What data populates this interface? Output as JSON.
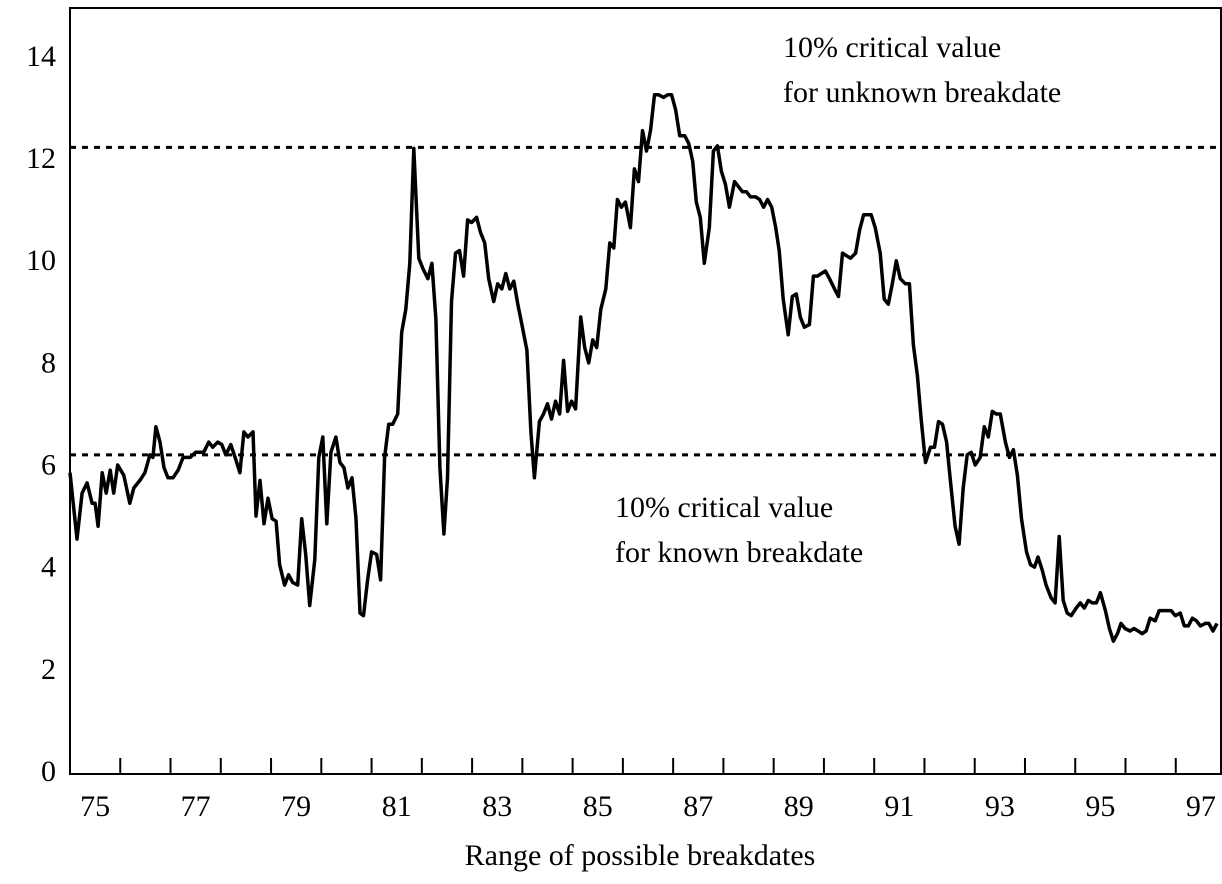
{
  "chart_data": {
    "type": "line",
    "xlabel": "Range of possible breakdates",
    "color": "#000000",
    "xlim": [
      75,
      97.9
    ],
    "ylim": [
      0,
      15
    ],
    "yticks": [
      0,
      2,
      4,
      6,
      8,
      10,
      12,
      14
    ],
    "xticks": [
      {
        "value": 75.5,
        "label": "75"
      },
      {
        "value": 77.5,
        "label": "77"
      },
      {
        "value": 79.5,
        "label": "79"
      },
      {
        "value": 81.5,
        "label": "81"
      },
      {
        "value": 83.5,
        "label": "83"
      },
      {
        "value": 85.5,
        "label": "85"
      },
      {
        "value": 87.5,
        "label": "87"
      },
      {
        "value": 89.5,
        "label": "89"
      },
      {
        "value": 91.5,
        "label": "91"
      },
      {
        "value": 93.5,
        "label": "93"
      },
      {
        "value": 95.5,
        "label": "95"
      },
      {
        "value": 97.5,
        "label": "97"
      }
    ],
    "xtick_marks": [
      76,
      77,
      78,
      79,
      80,
      81,
      82,
      83,
      84,
      85,
      86,
      87,
      88,
      89,
      90,
      91,
      92,
      93,
      94,
      95,
      96,
      97
    ],
    "reference_lines": [
      {
        "value": 12.27,
        "annotation": [
          "10% critical value",
          "for unknown breakdate"
        ]
      },
      {
        "value": 6.25,
        "annotation": [
          "10% critical value",
          "for known breakdate"
        ]
      }
    ],
    "x": [
      75.0,
      75.14,
      75.24,
      75.34,
      75.44,
      75.5,
      75.56,
      75.64,
      75.72,
      75.8,
      75.87,
      75.95,
      76.07,
      76.19,
      76.27,
      76.39,
      76.49,
      76.59,
      76.65,
      76.71,
      76.79,
      76.87,
      76.95,
      77.05,
      77.15,
      77.25,
      77.39,
      77.5,
      77.66,
      77.76,
      77.84,
      77.94,
      78.02,
      78.1,
      78.2,
      78.3,
      78.38,
      78.46,
      78.54,
      78.64,
      78.7,
      78.78,
      78.86,
      78.94,
      79.02,
      79.1,
      79.17,
      79.27,
      79.35,
      79.43,
      79.53,
      79.61,
      79.69,
      79.77,
      79.87,
      79.95,
      80.03,
      80.11,
      80.19,
      80.29,
      80.37,
      80.45,
      80.53,
      80.61,
      80.69,
      80.77,
      80.84,
      80.92,
      81.0,
      81.1,
      81.18,
      81.26,
      81.34,
      81.42,
      81.52,
      81.6,
      81.68,
      81.76,
      81.84,
      81.94,
      82.02,
      82.12,
      82.2,
      82.28,
      82.36,
      82.44,
      82.51,
      82.59,
      82.67,
      82.75,
      82.83,
      82.91,
      82.99,
      83.09,
      83.17,
      83.25,
      83.33,
      83.43,
      83.51,
      83.59,
      83.67,
      83.75,
      83.83,
      83.91,
      83.99,
      84.09,
      84.17,
      84.24,
      84.34,
      84.42,
      84.5,
      84.58,
      84.66,
      84.74,
      84.82,
      84.9,
      84.98,
      85.06,
      85.16,
      85.24,
      85.32,
      85.4,
      85.48,
      85.56,
      85.66,
      85.74,
      85.82,
      85.89,
      85.97,
      86.05,
      86.15,
      86.23,
      86.31,
      86.39,
      86.47,
      86.55,
      86.63,
      86.71,
      86.81,
      86.89,
      86.97,
      87.05,
      87.13,
      87.23,
      87.31,
      87.39,
      87.46,
      87.54,
      87.62,
      87.72,
      87.8,
      87.88,
      87.96,
      88.04,
      88.12,
      88.22,
      88.3,
      88.38,
      88.46,
      88.54,
      88.64,
      88.72,
      88.8,
      88.88,
      88.96,
      89.04,
      89.11,
      89.19,
      89.29,
      89.37,
      89.45,
      89.53,
      89.61,
      89.71,
      89.79,
      89.87,
      89.95,
      90.03,
      90.11,
      90.21,
      90.29,
      90.37,
      90.45,
      90.53,
      90.63,
      90.71,
      90.79,
      90.86,
      90.94,
      91.02,
      91.12,
      91.2,
      91.28,
      91.36,
      91.44,
      91.52,
      91.62,
      91.7,
      91.78,
      91.86,
      91.94,
      92.02,
      92.12,
      92.2,
      92.28,
      92.36,
      92.44,
      92.51,
      92.61,
      92.69,
      92.77,
      92.85,
      92.93,
      93.01,
      93.11,
      93.19,
      93.27,
      93.35,
      93.43,
      93.51,
      93.61,
      93.69,
      93.77,
      93.85,
      93.93,
      94.03,
      94.11,
      94.19,
      94.26,
      94.34,
      94.42,
      94.52,
      94.6,
      94.68,
      94.76,
      94.84,
      94.92,
      95.02,
      95.1,
      95.18,
      95.26,
      95.34,
      95.42,
      95.5,
      95.6,
      95.68,
      95.76,
      95.84,
      95.91,
      95.99,
      96.09,
      96.17,
      96.25,
      96.33,
      96.41,
      96.49,
      96.59,
      96.67,
      96.75,
      96.83,
      96.91,
      96.99,
      97.09,
      97.17,
      97.25,
      97.33,
      97.41,
      97.49,
      97.59,
      97.66,
      97.74,
      97.82
    ],
    "values": [
      5.9,
      4.6,
      5.5,
      5.7,
      5.3,
      5.3,
      4.85,
      5.9,
      5.5,
      5.95,
      5.5,
      6.05,
      5.85,
      5.3,
      5.6,
      5.75,
      5.9,
      6.25,
      6.2,
      6.8,
      6.5,
      6.0,
      5.8,
      5.8,
      5.95,
      6.2,
      6.2,
      6.3,
      6.3,
      6.5,
      6.4,
      6.5,
      6.45,
      6.25,
      6.45,
      6.15,
      5.9,
      6.7,
      6.6,
      6.7,
      5.05,
      5.75,
      4.9,
      5.4,
      5.0,
      4.95,
      4.1,
      3.7,
      3.9,
      3.75,
      3.7,
      5.0,
      4.3,
      3.3,
      4.2,
      6.2,
      6.6,
      4.9,
      6.3,
      6.6,
      6.1,
      6.0,
      5.6,
      5.8,
      5.0,
      3.15,
      3.1,
      3.8,
      4.35,
      4.3,
      3.8,
      6.2,
      6.85,
      6.85,
      7.05,
      8.65,
      9.1,
      10.0,
      12.25,
      10.1,
      9.9,
      9.7,
      10.0,
      8.9,
      6.0,
      4.7,
      5.8,
      9.25,
      10.2,
      10.25,
      9.75,
      10.85,
      10.8,
      10.9,
      10.6,
      10.4,
      9.7,
      9.25,
      9.6,
      9.5,
      9.8,
      9.5,
      9.65,
      9.2,
      8.8,
      8.3,
      6.7,
      5.8,
      6.9,
      7.05,
      7.25,
      6.95,
      7.3,
      7.05,
      8.1,
      7.1,
      7.3,
      7.15,
      8.95,
      8.35,
      8.05,
      8.5,
      8.35,
      9.1,
      9.5,
      10.4,
      10.3,
      11.25,
      11.1,
      11.2,
      10.7,
      11.85,
      11.6,
      12.6,
      12.2,
      12.6,
      13.3,
      13.3,
      13.25,
      13.3,
      13.3,
      13.0,
      12.5,
      12.5,
      12.35,
      12.0,
      11.2,
      10.9,
      10.0,
      10.7,
      12.2,
      12.3,
      11.8,
      11.55,
      11.1,
      11.6,
      11.5,
      11.4,
      11.4,
      11.3,
      11.3,
      11.25,
      11.1,
      11.25,
      11.1,
      10.7,
      10.25,
      9.3,
      8.6,
      9.35,
      9.4,
      8.95,
      8.75,
      8.8,
      9.75,
      9.75,
      9.8,
      9.85,
      9.7,
      9.5,
      9.35,
      10.2,
      10.15,
      10.1,
      10.2,
      10.65,
      10.95,
      10.95,
      10.95,
      10.7,
      10.2,
      9.3,
      9.2,
      9.6,
      10.05,
      9.7,
      9.6,
      9.6,
      8.4,
      7.8,
      6.9,
      6.1,
      6.4,
      6.4,
      6.9,
      6.85,
      6.5,
      5.8,
      4.85,
      4.5,
      5.6,
      6.25,
      6.3,
      6.05,
      6.2,
      6.8,
      6.6,
      7.1,
      7.05,
      7.05,
      6.5,
      6.2,
      6.35,
      5.85,
      5.0,
      4.35,
      4.1,
      4.05,
      4.25,
      4.0,
      3.7,
      3.45,
      3.35,
      4.65,
      3.4,
      3.15,
      3.1,
      3.25,
      3.35,
      3.25,
      3.4,
      3.35,
      3.35,
      3.55,
      3.2,
      2.85,
      2.6,
      2.75,
      2.95,
      2.85,
      2.8,
      2.85,
      2.8,
      2.75,
      2.8,
      3.05,
      3.0,
      3.2,
      3.2,
      3.2,
      3.2,
      3.1,
      3.15,
      2.9,
      2.9,
      3.05,
      3.0,
      2.9,
      2.95,
      2.95,
      2.8,
      2.95
    ]
  }
}
